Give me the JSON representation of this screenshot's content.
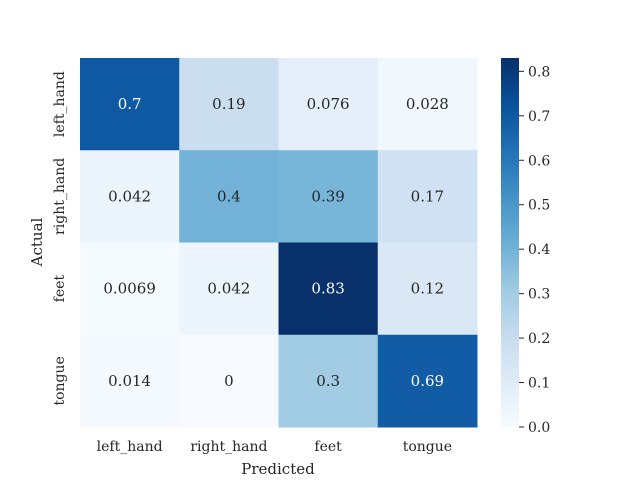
{
  "chart_data": {
    "type": "heatmap",
    "xlabel": "Predicted",
    "ylabel": "Actual",
    "x_categories": [
      "left_hand",
      "right_hand",
      "feet",
      "tongue"
    ],
    "y_categories": [
      "left_hand",
      "right_hand",
      "feet",
      "tongue"
    ],
    "values": [
      [
        0.7,
        0.19,
        0.076,
        0.028
      ],
      [
        0.042,
        0.4,
        0.39,
        0.17
      ],
      [
        0.0069,
        0.042,
        0.83,
        0.12
      ],
      [
        0.014,
        0,
        0.3,
        0.69
      ]
    ],
    "value_labels": [
      [
        "0.7",
        "0.19",
        "0.076",
        "0.028"
      ],
      [
        "0.042",
        "0.4",
        "0.39",
        "0.17"
      ],
      [
        "0.0069",
        "0.042",
        "0.83",
        "0.12"
      ],
      [
        "0.014",
        "0",
        "0.3",
        "0.69"
      ]
    ],
    "colormap": "Blues",
    "colorbar": {
      "range": [
        0.0,
        0.83
      ],
      "ticks": [
        0.0,
        0.1,
        0.2,
        0.3,
        0.4,
        0.5,
        0.6,
        0.7,
        0.8
      ],
      "tick_labels": [
        "0.0",
        "0.1",
        "0.2",
        "0.3",
        "0.4",
        "0.5",
        "0.6",
        "0.7",
        "0.8"
      ]
    },
    "text_color_dark": "#262626",
    "text_color_light": "#ffffff"
  }
}
